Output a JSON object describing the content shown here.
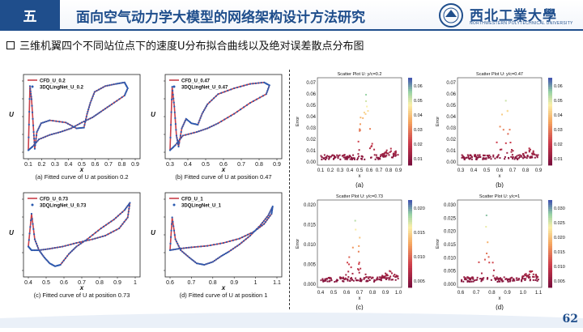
{
  "header": {
    "section": "五",
    "title": "面向空气动力学大模型的网络架构设计方法研究",
    "logo_cn": "西北工業大學",
    "logo_en": "NORTHWESTERN POLYTECHNICAL UNIVERSITY"
  },
  "subtitle": "三维机翼四个不同站位点下的速度U分布拟合曲线以及绝对误差散点分布图",
  "page_number": "62",
  "colors": {
    "primary": "#1f4e8c",
    "cfd": "#c8404a",
    "pred": "#2a5ab0"
  },
  "fits": [
    {
      "legend_cfd": "CFD_U_0.2",
      "legend_pred": "3DQLingNet_U_0.2",
      "ylabel": "U",
      "xlabel": "x",
      "caption": "(a) Fitted curve of U at position 0.2",
      "xticks": [
        "0.1",
        "0.2",
        "0.3",
        "0.4",
        "0.5",
        "0.6",
        "0.7",
        "0.8",
        "0.9"
      ]
    },
    {
      "legend_cfd": "CFD_U_0.47",
      "legend_pred": "3DQLingNet_U_0.47",
      "ylabel": "U",
      "xlabel": "x",
      "caption": "(b) Fitted curve of U at position 0.47",
      "xticks": [
        "0.3",
        "0.4",
        "0.5",
        "0.6",
        "0.7",
        "0.8",
        "0.9"
      ]
    },
    {
      "legend_cfd": "CFD_U_0.73",
      "legend_pred": "3DQLingNet_U_0.73",
      "ylabel": "U",
      "xlabel": "x",
      "caption": "(c) Fitted curve of U at position 0.73",
      "xticks": [
        "0.4",
        "0.5",
        "0.6",
        "0.7",
        "0.8",
        "0.9",
        "1"
      ]
    },
    {
      "legend_cfd": "CFD_U_1",
      "legend_pred": "3DQLingNet_U_1",
      "ylabel": "U",
      "xlabel": "x",
      "caption": "(d) Fitted curve of U at position 1",
      "xticks": [
        "0.6",
        "0.7",
        "0.8",
        "0.9",
        "1",
        "1.1"
      ]
    }
  ],
  "scatters": [
    {
      "title": "Scatter Plot U: y/c=0.2",
      "ylabel": "Error",
      "xlabel": "x",
      "label": "(a)",
      "yticks": [
        "0.00",
        "0.01",
        "0.02",
        "0.03",
        "0.04",
        "0.05",
        "0.06",
        "0.07"
      ],
      "xticks": [
        "0.1",
        "0.2",
        "0.3",
        "0.4",
        "0.5",
        "0.6",
        "0.7",
        "0.8",
        "0.9"
      ],
      "cbticks": [
        "0.01",
        "0.02",
        "0.03",
        "0.04",
        "0.05",
        "0.06"
      ]
    },
    {
      "title": "Scatter Plot U: y/c=0.47",
      "ylabel": "Error",
      "xlabel": "x",
      "label": "(b)",
      "yticks": [
        "0.00",
        "0.01",
        "0.02",
        "0.03",
        "0.04",
        "0.05",
        "0.06",
        "0.07"
      ],
      "xticks": [
        "0.3",
        "0.4",
        "0.5",
        "0.6",
        "0.7",
        "0.8",
        "0.9"
      ],
      "cbticks": [
        "0.01",
        "0.02",
        "0.03",
        "0.04",
        "0.05",
        "0.06"
      ]
    },
    {
      "title": "Scatter Plot U: y/c=0.73",
      "ylabel": "Error",
      "xlabel": "x",
      "label": "(c)",
      "yticks": [
        "0.000",
        "0.005",
        "0.010",
        "0.015",
        "0.020"
      ],
      "xticks": [
        "0.4",
        "0.5",
        "0.6",
        "0.7",
        "0.8",
        "0.9",
        "1.0"
      ],
      "cbticks": [
        "0.005",
        "0.010",
        "0.015",
        "0.020"
      ]
    },
    {
      "title": "Scatter Plot U: y/c=1",
      "ylabel": "Error",
      "xlabel": "x",
      "label": "(d)",
      "yticks": [
        "0.000",
        "0.005",
        "0.010",
        "0.015",
        "0.020",
        "0.025",
        "0.030"
      ],
      "xticks": [
        "0.6",
        "0.7",
        "0.8",
        "0.9",
        "1.0",
        "1.1"
      ],
      "cbticks": [
        "0.005",
        "0.010",
        "0.015",
        "0.020",
        "0.025",
        "0.030"
      ]
    }
  ]
}
